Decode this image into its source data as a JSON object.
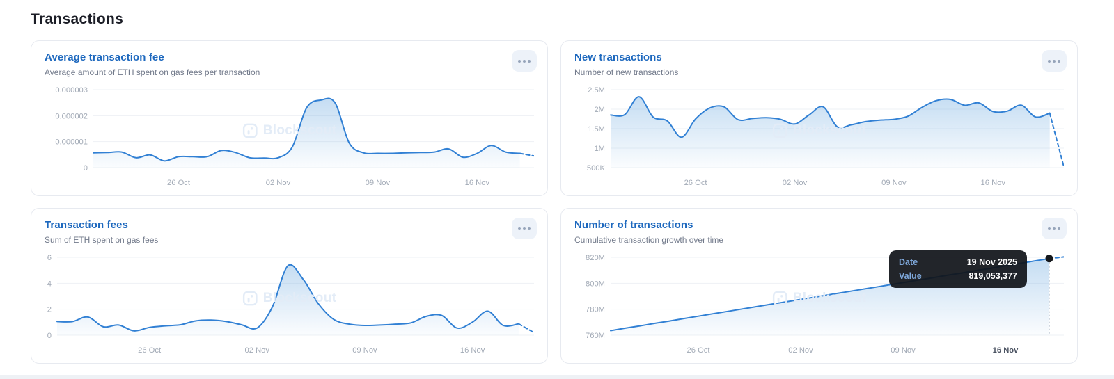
{
  "page": {
    "title": "Transactions"
  },
  "watermark_text": "Blockscout",
  "colors": {
    "accent_blue": "#3180d4",
    "title_blue": "#1d68be",
    "axis_label": "#a2aab6",
    "gridline": "#eef1f5",
    "tooltip_bg": "#111419",
    "tooltip_label": "#7fa9dc",
    "marker_dot": "#15181d"
  },
  "tooltip": {
    "date_label": "Date",
    "date_value": "19 Nov 2025",
    "value_label": "Value",
    "value_value": "819,053,377"
  },
  "charts": [
    {
      "title": "Average transaction fee",
      "subtitle": "Average amount of ETH spent on gas fees per transaction",
      "chart_data": {
        "type": "area",
        "unit": "ETH",
        "ylim": [
          0,
          3
        ],
        "y_ticks": [
          {
            "label": "0.000003",
            "value": 3
          },
          {
            "label": "0.000002",
            "value": 2
          },
          {
            "label": "0.000001",
            "value": 1
          },
          {
            "label": "0",
            "value": 0
          }
        ],
        "x_ticks": [
          {
            "label": "26 Oct",
            "index": 6
          },
          {
            "label": "02 Nov",
            "index": 13
          },
          {
            "label": "09 Nov",
            "index": 20
          },
          {
            "label": "16 Nov",
            "index": 27
          }
        ],
        "values_scale_note": "values are ETH x 1e-6, matching axis labels",
        "values": [
          0.57,
          0.58,
          0.6,
          0.38,
          0.49,
          0.26,
          0.42,
          0.42,
          0.42,
          0.66,
          0.58,
          0.38,
          0.37,
          0.38,
          0.8,
          2.3,
          2.6,
          2.5,
          0.95,
          0.57,
          0.55,
          0.55,
          0.57,
          0.58,
          0.6,
          0.72,
          0.4,
          0.55,
          0.85,
          0.6,
          0.55,
          0.45
        ],
        "dashed_from": 30
      }
    },
    {
      "title": "New transactions",
      "subtitle": "Number of new transactions",
      "chart_data": {
        "type": "area",
        "unit": "transactions (millions)",
        "ylim": [
          0.5,
          2.5
        ],
        "y_ticks": [
          {
            "label": "2.5M",
            "value": 2.5
          },
          {
            "label": "2M",
            "value": 2.0
          },
          {
            "label": "1.5M",
            "value": 1.5
          },
          {
            "label": "1M",
            "value": 1.0
          },
          {
            "label": "500K",
            "value": 0.5
          }
        ],
        "x_ticks": [
          {
            "label": "26 Oct",
            "index": 6
          },
          {
            "label": "02 Nov",
            "index": 13
          },
          {
            "label": "09 Nov",
            "index": 20
          },
          {
            "label": "16 Nov",
            "index": 27
          }
        ],
        "values": [
          1.85,
          1.86,
          2.32,
          1.8,
          1.7,
          1.28,
          1.75,
          2.03,
          2.06,
          1.73,
          1.76,
          1.78,
          1.74,
          1.62,
          1.85,
          2.06,
          1.55,
          1.6,
          1.68,
          1.72,
          1.74,
          1.82,
          2.05,
          2.22,
          2.25,
          2.1,
          2.16,
          1.94,
          1.95,
          2.1,
          1.8,
          1.9,
          0.52
        ],
        "dashed_from": 31
      }
    },
    {
      "title": "Transaction fees",
      "subtitle": "Sum of ETH spent on gas fees",
      "chart_data": {
        "type": "area",
        "unit": "ETH",
        "ylim": [
          0,
          6
        ],
        "y_ticks": [
          {
            "label": "6",
            "value": 6
          },
          {
            "label": "4",
            "value": 4
          },
          {
            "label": "2",
            "value": 2
          },
          {
            "label": "0",
            "value": 0
          }
        ],
        "x_ticks": [
          {
            "label": "26 Oct",
            "index": 6
          },
          {
            "label": "02 Nov",
            "index": 13
          },
          {
            "label": "09 Nov",
            "index": 20
          },
          {
            "label": "16 Nov",
            "index": 27
          }
        ],
        "values": [
          1.05,
          1.05,
          1.4,
          0.65,
          0.78,
          0.33,
          0.6,
          0.72,
          0.8,
          1.1,
          1.16,
          1.05,
          0.8,
          0.55,
          2.2,
          5.35,
          4.3,
          2.4,
          1.2,
          0.85,
          0.75,
          0.78,
          0.85,
          0.95,
          1.45,
          1.52,
          0.55,
          1.0,
          1.85,
          0.75,
          0.88,
          0.2
        ],
        "dashed_from": 30
      }
    },
    {
      "title": "Number of transactions",
      "subtitle": "Cumulative transaction growth over time",
      "chart_data": {
        "type": "area",
        "unit": "transactions (millions)",
        "ylim": [
          760,
          820
        ],
        "y_ticks": [
          {
            "label": "820M",
            "value": 820
          },
          {
            "label": "800M",
            "value": 800
          },
          {
            "label": "780M",
            "value": 780
          },
          {
            "label": "760M",
            "value": 760
          }
        ],
        "x_ticks": [
          {
            "label": "26 Oct",
            "index": 6
          },
          {
            "label": "02 Nov",
            "index": 13
          },
          {
            "label": "09 Nov",
            "index": 20
          },
          {
            "label": "16 Nov",
            "index": 27,
            "bold": true
          }
        ],
        "values": [
          763.5,
          765.4,
          767.2,
          769.1,
          770.9,
          772.8,
          774.6,
          776.5,
          778.3,
          780.2,
          782.0,
          783.9,
          785.7,
          787.6,
          789.4,
          791.3,
          793.1,
          795.0,
          796.8,
          798.7,
          800.5,
          802.4,
          804.2,
          806.1,
          807.9,
          809.8,
          811.6,
          813.5,
          815.3,
          817.2,
          819.05,
          820.3
        ],
        "dashed_from": 30,
        "marker": {
          "index": 30,
          "value": 819.05,
          "hover_date": "19 Nov 2025",
          "hover_value": "819,053,377"
        }
      }
    }
  ]
}
